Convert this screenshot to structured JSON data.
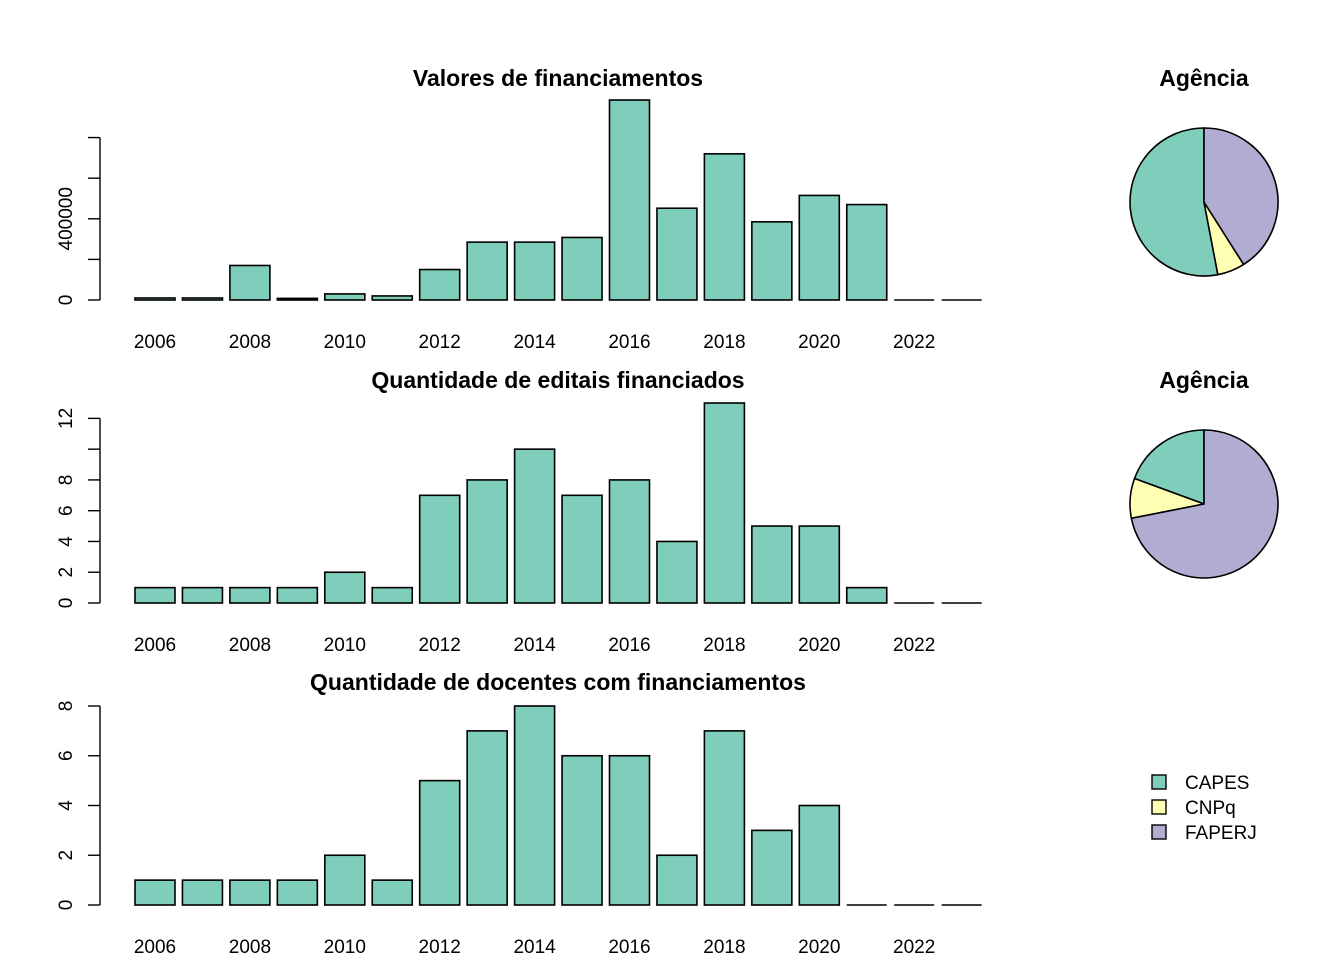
{
  "colors": {
    "CAPES": "#7FCDBB",
    "CNPq": "#FFFFB3",
    "FAPERJ": "#B2ABD2",
    "axis": "#000000"
  },
  "chart_data": [
    {
      "type": "bar",
      "title": "Valores de financiamentos",
      "xlabel": "",
      "ylabel": "",
      "categories": [
        2006,
        2007,
        2008,
        2009,
        2010,
        2011,
        2012,
        2013,
        2014,
        2015,
        2016,
        2017,
        2018,
        2019,
        2020,
        2021,
        2022,
        2023
      ],
      "values": [
        10000,
        10000,
        170000,
        8000,
        30000,
        20000,
        150000,
        285000,
        285000,
        308000,
        985000,
        452000,
        720000,
        385000,
        515000,
        470000,
        0,
        0
      ],
      "x_tick_labels": [
        "2006",
        "2008",
        "2010",
        "2012",
        "2014",
        "2016",
        "2018",
        "2020",
        "2022"
      ],
      "y_ticks": [
        0,
        200000,
        400000,
        600000,
        800000
      ],
      "y_tick_labels": [
        "0",
        "",
        "400000",
        "",
        ""
      ],
      "ylim": [
        0,
        985000
      ],
      "grid": false
    },
    {
      "type": "bar",
      "title": "Quantidade de editais financiados",
      "xlabel": "",
      "ylabel": "",
      "categories": [
        2006,
        2007,
        2008,
        2009,
        2010,
        2011,
        2012,
        2013,
        2014,
        2015,
        2016,
        2017,
        2018,
        2019,
        2020,
        2021,
        2022,
        2023
      ],
      "values": [
        1,
        1,
        1,
        1,
        2,
        1,
        7,
        8,
        10,
        7,
        8,
        4,
        13,
        5,
        5,
        1,
        0,
        0
      ],
      "x_tick_labels": [
        "2006",
        "2008",
        "2010",
        "2012",
        "2014",
        "2016",
        "2018",
        "2020",
        "2022"
      ],
      "y_ticks": [
        0,
        2,
        4,
        6,
        8,
        10,
        12
      ],
      "y_tick_labels": [
        "0",
        "2",
        "4",
        "6",
        "8",
        "",
        "12"
      ],
      "ylim": [
        0,
        13
      ],
      "grid": false
    },
    {
      "type": "bar",
      "title": "Quantidade de docentes com financiamentos",
      "xlabel": "",
      "ylabel": "",
      "categories": [
        2006,
        2007,
        2008,
        2009,
        2010,
        2011,
        2012,
        2013,
        2014,
        2015,
        2016,
        2017,
        2018,
        2019,
        2020,
        2021,
        2022,
        2023
      ],
      "values": [
        1,
        1,
        1,
        1,
        2,
        1,
        5,
        7,
        8,
        6,
        6,
        2,
        7,
        3,
        4,
        0,
        0,
        0
      ],
      "x_tick_labels": [
        "2006",
        "2008",
        "2010",
        "2012",
        "2014",
        "2016",
        "2018",
        "2020",
        "2022"
      ],
      "y_ticks": [
        0,
        2,
        4,
        6,
        8
      ],
      "y_tick_labels": [
        "0",
        "2",
        "4",
        "6",
        "8"
      ],
      "ylim": [
        0,
        8
      ],
      "grid": false
    },
    {
      "type": "pie",
      "title": "Agência",
      "labels": [
        "CAPES",
        "CNPq",
        "FAPERJ"
      ],
      "values": [
        53,
        6,
        41
      ]
    },
    {
      "type": "pie",
      "title": "Agência",
      "labels": [
        "CAPES",
        "CNPq",
        "FAPERJ"
      ],
      "values": [
        19.4,
        8.7,
        71.9
      ]
    }
  ],
  "legend": {
    "placement": "right",
    "entries": [
      "CAPES",
      "CNPq",
      "FAPERJ"
    ]
  }
}
